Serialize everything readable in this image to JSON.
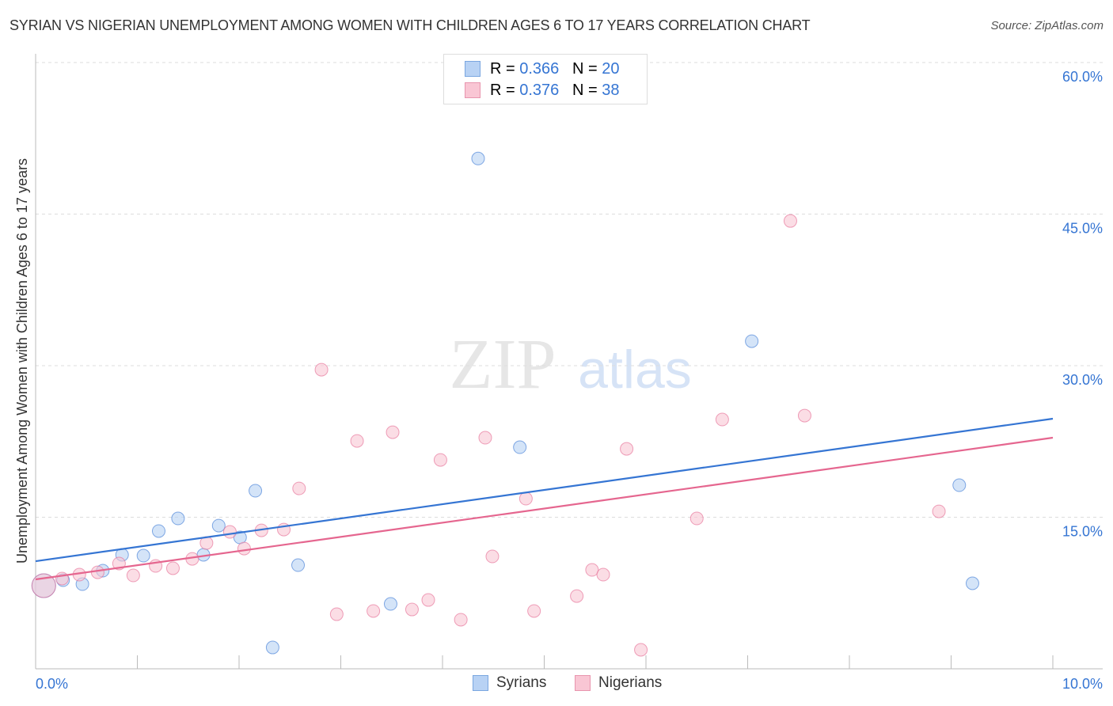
{
  "title": "SYRIAN VS NIGERIAN UNEMPLOYMENT AMONG WOMEN WITH CHILDREN AGES 6 TO 17 YEARS CORRELATION CHART",
  "source": "Source: ZipAtlas.com",
  "watermark": "ZIPatlas",
  "legend": {
    "rows": [
      {
        "r_label": "R = ",
        "r": "0.366",
        "n_label": "N = ",
        "n": "20",
        "color": "#b8d2f4",
        "border": "#7aa6e0"
      },
      {
        "r_label": "R = ",
        "r": "0.376",
        "n_label": "N = ",
        "n": "38",
        "color": "#f9c6d4",
        "border": "#e895ae"
      }
    ]
  },
  "chart_data": {
    "type": "scatter",
    "title": "SYRIAN VS NIGERIAN UNEMPLOYMENT AMONG WOMEN WITH CHILDREN AGES 6 TO 17 YEARS CORRELATION CHART",
    "xlabel": "",
    "ylabel": "Unemployment Among Women with Children Ages 6 to 17 years",
    "xlim": [
      0,
      10
    ],
    "ylim": [
      0,
      60
    ],
    "x_tick_labels": [
      "0.0%",
      "10.0%"
    ],
    "y_ticks": [
      15,
      30,
      45,
      60
    ],
    "y_tick_labels": [
      "15.0%",
      "30.0%",
      "45.0%",
      "60.0%"
    ],
    "grid": true,
    "legend_placement": "bottom-center",
    "series": [
      {
        "name": "Syrians",
        "color": "#3575d3",
        "fill": "#b8d2f4",
        "trend": [
          [
            0,
            10.65
          ],
          [
            10,
            24.75
          ]
        ],
        "points": [
          [
            0.08,
            8.22
          ],
          [
            0.27,
            8.77
          ],
          [
            0.46,
            8.38
          ],
          [
            0.66,
            9.71
          ],
          [
            0.85,
            11.28
          ],
          [
            1.06,
            11.2
          ],
          [
            1.21,
            13.63
          ],
          [
            1.4,
            14.88
          ],
          [
            1.65,
            11.28
          ],
          [
            1.8,
            14.17
          ],
          [
            2.01,
            13.0
          ],
          [
            2.16,
            17.62
          ],
          [
            2.58,
            10.26
          ],
          [
            3.49,
            6.42
          ],
          [
            2.33,
            2.11
          ],
          [
            4.35,
            50.5
          ],
          [
            4.76,
            21.93
          ],
          [
            7.04,
            32.42
          ],
          [
            9.08,
            18.17
          ],
          [
            9.21,
            8.46
          ]
        ]
      },
      {
        "name": "Nigerians",
        "color": "#e5668f",
        "fill": "#f9c6d4",
        "trend": [
          [
            0,
            8.85
          ],
          [
            10,
            22.87
          ]
        ],
        "points": [
          [
            0.08,
            8.22
          ],
          [
            0.26,
            8.93
          ],
          [
            0.43,
            9.32
          ],
          [
            0.61,
            9.55
          ],
          [
            0.82,
            10.42
          ],
          [
            0.96,
            9.24
          ],
          [
            1.18,
            10.18
          ],
          [
            1.35,
            9.95
          ],
          [
            1.54,
            10.88
          ],
          [
            1.68,
            12.45
          ],
          [
            1.91,
            13.55
          ],
          [
            2.05,
            11.9
          ],
          [
            2.22,
            13.7
          ],
          [
            2.44,
            13.78
          ],
          [
            2.59,
            17.85
          ],
          [
            2.81,
            29.6
          ],
          [
            2.96,
            5.4
          ],
          [
            3.16,
            22.55
          ],
          [
            3.32,
            5.72
          ],
          [
            3.51,
            23.41
          ],
          [
            3.7,
            5.87
          ],
          [
            3.86,
            6.81
          ],
          [
            3.98,
            20.67
          ],
          [
            4.18,
            4.86
          ],
          [
            4.42,
            22.87
          ],
          [
            4.49,
            11.12
          ],
          [
            4.82,
            16.84
          ],
          [
            4.9,
            5.72
          ],
          [
            5.32,
            7.2
          ],
          [
            5.47,
            9.79
          ],
          [
            5.58,
            9.32
          ],
          [
            5.81,
            21.77
          ],
          [
            5.95,
            1.88
          ],
          [
            6.5,
            14.88
          ],
          [
            6.75,
            24.67
          ],
          [
            7.42,
            44.32
          ],
          [
            7.56,
            25.06
          ],
          [
            8.88,
            15.58
          ]
        ]
      }
    ]
  }
}
